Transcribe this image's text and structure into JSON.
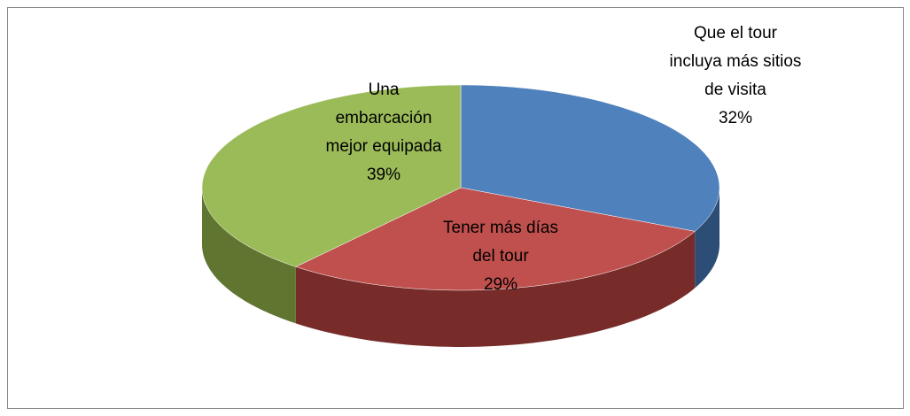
{
  "chart_data": {
    "type": "pie",
    "three_d": true,
    "categories": [
      "Que el tour incluya más sitios de visita",
      "Tener más días del tour",
      "Una embarcación mejor equipada"
    ],
    "values": [
      32,
      29,
      39
    ],
    "value_labels": [
      "32%",
      "29%",
      "39%"
    ],
    "colors": [
      "#4f81bd",
      "#c0504d",
      "#9bbb59"
    ],
    "side_colors": [
      "#2c4d75",
      "#772c2a",
      "#5f7530"
    ]
  }
}
